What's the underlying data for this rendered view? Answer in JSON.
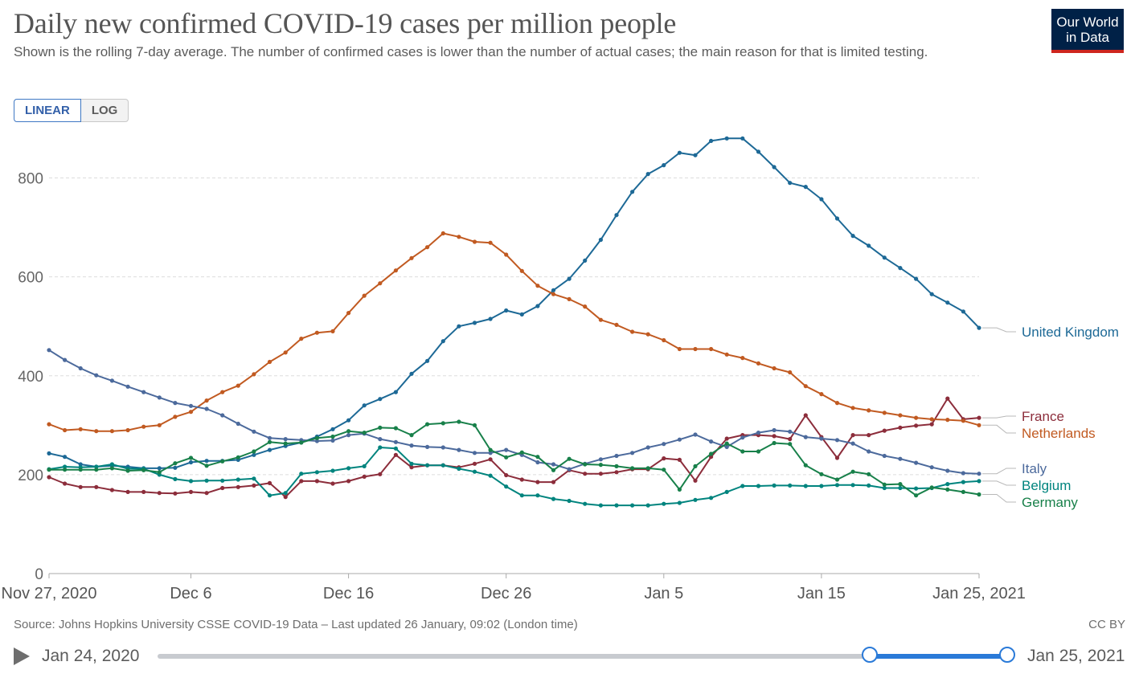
{
  "header": {
    "title": "Daily new confirmed COVID-19 cases per million people",
    "subtitle": "Shown is the rolling 7-day average. The number of confirmed cases is lower than the number of actual cases; the main reason for that is limited testing."
  },
  "logo": {
    "line1": "Our World",
    "line2": "in Data"
  },
  "scale_toggle": {
    "linear": "LINEAR",
    "log": "LOG"
  },
  "footer": {
    "source": "Source: Johns Hopkins University CSSE COVID-19 Data – Last updated 26 January, 09:02 (London time)",
    "license": "CC BY"
  },
  "timeline": {
    "start_label": "Jan 24, 2020",
    "end_label": "Jan 25, 2021"
  },
  "colors": {
    "accent": "#2a7ad8",
    "grid": "#dddddd",
    "axis": "#aaaaaa"
  },
  "chart_data": {
    "type": "line",
    "title": "Daily new confirmed COVID-19 cases per million people",
    "x_start": "2020-11-27",
    "x_end": "2021-01-25",
    "ylim": [
      0,
      900
    ],
    "y_ticks": [
      0,
      200,
      400,
      600,
      800
    ],
    "x_ticks": [
      {
        "day": 0,
        "label": "Nov 27, 2020"
      },
      {
        "day": 9,
        "label": "Dec 6"
      },
      {
        "day": 19,
        "label": "Dec 16"
      },
      {
        "day": 29,
        "label": "Dec 26"
      },
      {
        "day": 39,
        "label": "Jan 5"
      },
      {
        "day": 49,
        "label": "Jan 15"
      },
      {
        "day": 59,
        "label": "Jan 25, 2021"
      }
    ],
    "grid": true,
    "legend": "right",
    "series": [
      {
        "name": "United Kingdom",
        "color": "#1d6996",
        "values": [
          243,
          236,
          221,
          216,
          218,
          216,
          213,
          213,
          214,
          225,
          228,
          228,
          230,
          240,
          250,
          258,
          265,
          277,
          292,
          310,
          340,
          353,
          367,
          404,
          430,
          470,
          500,
          507,
          515,
          532,
          524,
          541,
          573,
          596,
          633,
          675,
          725,
          772,
          808,
          826,
          851,
          846,
          875,
          880,
          880,
          853,
          822,
          790,
          782,
          757,
          718,
          683,
          663,
          639,
          618,
          596,
          565,
          548,
          530,
          497
        ]
      },
      {
        "name": "France",
        "color": "#8c2d3b",
        "values": [
          195,
          182,
          175,
          175,
          169,
          165,
          165,
          163,
          162,
          165,
          163,
          173,
          175,
          178,
          183,
          155,
          187,
          187,
          182,
          187,
          196,
          201,
          240,
          215,
          219,
          219,
          215,
          222,
          231,
          199,
          190,
          185,
          185,
          209,
          202,
          202,
          205,
          211,
          211,
          233,
          230,
          188,
          236,
          273,
          280,
          280,
          278,
          272,
          320,
          276,
          234,
          280,
          280,
          289,
          295,
          299,
          302,
          354,
          312,
          315
        ]
      },
      {
        "name": "Netherlands",
        "color": "#c15a21",
        "values": [
          302,
          290,
          292,
          288,
          288,
          290,
          297,
          300,
          317,
          327,
          350,
          367,
          380,
          403,
          428,
          447,
          475,
          487,
          490,
          527,
          562,
          587,
          613,
          638,
          660,
          688,
          681,
          671,
          669,
          645,
          612,
          582,
          565,
          555,
          540,
          513,
          503,
          489,
          484,
          472,
          454,
          454,
          454,
          443,
          436,
          425,
          415,
          407,
          379,
          363,
          345,
          335,
          330,
          325,
          320,
          315,
          312,
          311,
          309,
          300
        ]
      },
      {
        "name": "Italy",
        "color": "#4c6a9c",
        "values": [
          452,
          432,
          415,
          401,
          390,
          378,
          367,
          356,
          345,
          339,
          333,
          320,
          303,
          287,
          274,
          272,
          270,
          268,
          269,
          280,
          283,
          272,
          266,
          259,
          256,
          255,
          250,
          244,
          244,
          250,
          240,
          225,
          221,
          211,
          222,
          231,
          238,
          244,
          255,
          262,
          271,
          281,
          267,
          256,
          275,
          285,
          290,
          287,
          276,
          273,
          270,
          263,
          247,
          238,
          232,
          224,
          215,
          208,
          203,
          202
        ]
      },
      {
        "name": "Belgium",
        "color": "#00847e",
        "values": [
          211,
          216,
          215,
          216,
          221,
          212,
          212,
          200,
          191,
          187,
          188,
          188,
          190,
          192,
          158,
          163,
          202,
          205,
          208,
          213,
          217,
          255,
          253,
          222,
          219,
          219,
          212,
          206,
          198,
          176,
          158,
          158,
          151,
          147,
          141,
          138,
          138,
          138,
          138,
          141,
          143,
          149,
          153,
          165,
          177,
          177,
          178,
          178,
          177,
          177,
          179,
          179,
          178,
          173,
          173,
          172,
          173,
          181,
          185,
          187
        ]
      },
      {
        "name": "Germany",
        "color": "#18804a",
        "values": [
          210,
          210,
          210,
          210,
          213,
          208,
          209,
          205,
          223,
          234,
          218,
          227,
          235,
          247,
          266,
          263,
          265,
          274,
          277,
          288,
          285,
          295,
          294,
          280,
          302,
          304,
          307,
          300,
          250,
          235,
          245,
          236,
          209,
          232,
          221,
          220,
          217,
          213,
          213,
          210,
          170,
          217,
          242,
          263,
          247,
          247,
          264,
          262,
          219,
          201,
          190,
          206,
          201,
          180,
          181,
          158,
          174,
          170,
          165,
          160
        ]
      }
    ]
  }
}
